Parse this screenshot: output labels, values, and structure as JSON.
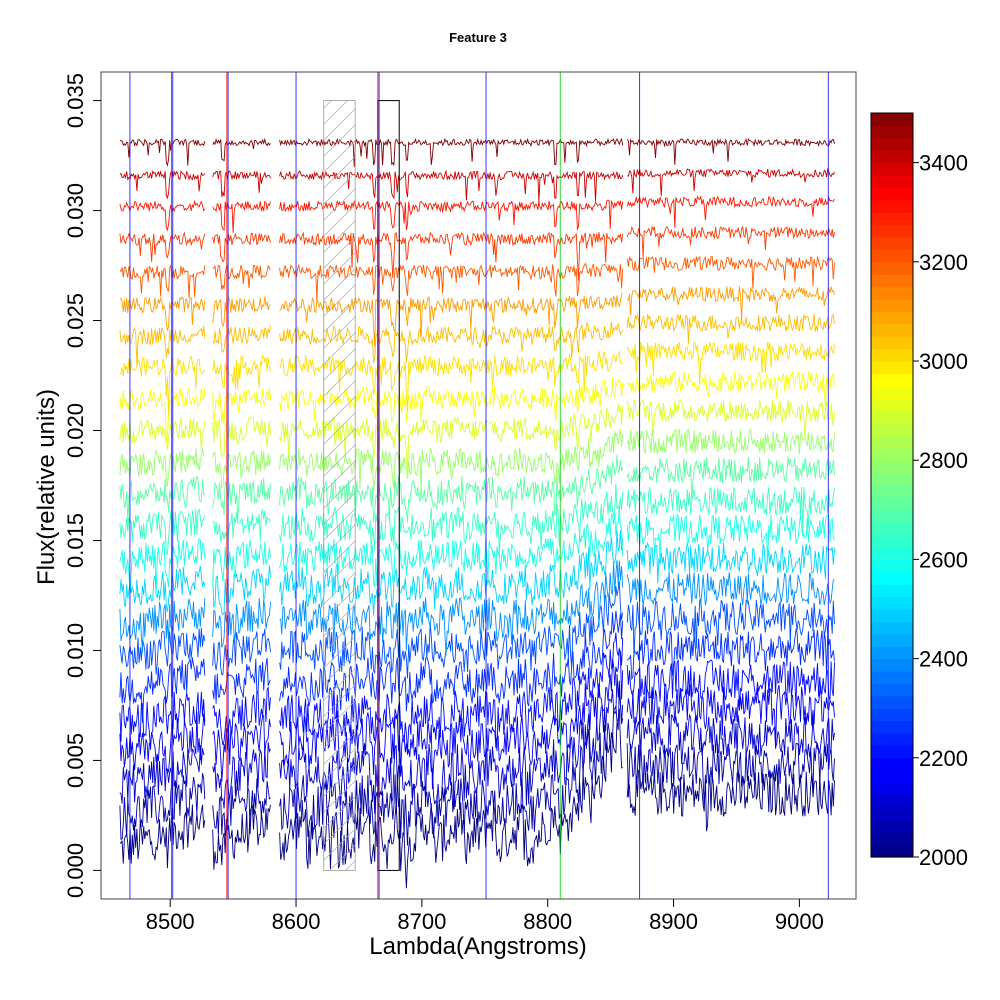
{
  "chart_data": {
    "type": "line",
    "title": "Feature 3",
    "xlabel": "Lambda(Angstroms)",
    "ylabel": "Flux(relative units)",
    "xlim": [
      8445,
      9045
    ],
    "ylim": [
      -0.0013,
      0.0363
    ],
    "x_ticks": [
      "8500",
      "8600",
      "8700",
      "8800",
      "8900",
      "9000"
    ],
    "x_tick_values": [
      8500,
      8600,
      8700,
      8800,
      8900,
      9000
    ],
    "y_ticks": [
      "0.000",
      "0.005",
      "0.010",
      "0.015",
      "0.020",
      "0.025",
      "0.030",
      "0.035"
    ],
    "y_tick_values": [
      0.0,
      0.005,
      0.01,
      0.015,
      0.02,
      0.025,
      0.03,
      0.035
    ],
    "spectra_x_range": [
      8460,
      9028
    ],
    "series_offsets": [
      0.0013,
      0.0027,
      0.0041,
      0.0056,
      0.0069,
      0.0084,
      0.0099,
      0.0113,
      0.0128,
      0.0142,
      0.0156,
      0.0171,
      0.0185,
      0.02,
      0.0214,
      0.0229,
      0.0243,
      0.0257,
      0.0272,
      0.0287,
      0.0302,
      0.0316,
      0.0331
    ],
    "series_temperatures": [
      2000,
      2050,
      2100,
      2150,
      2200,
      2250,
      2300,
      2400,
      2500,
      2600,
      2650,
      2700,
      2800,
      2900,
      2950,
      3000,
      3050,
      3100,
      3200,
      3250,
      3300,
      3400,
      3500
    ],
    "vertical_lines": [
      {
        "x": 8468,
        "color": "#0000ff"
      },
      {
        "x": 8501,
        "color": "#ff0000"
      },
      {
        "x": 8502,
        "color": "#0000ff"
      },
      {
        "x": 8545,
        "color": "#ff0000"
      },
      {
        "x": 8546,
        "color": "#0000ff"
      },
      {
        "x": 8600,
        "color": "#0000ff"
      },
      {
        "x": 8665,
        "color": "#ff0000"
      },
      {
        "x": 8666,
        "color": "#0000ff"
      },
      {
        "x": 8751,
        "color": "#0000ff"
      },
      {
        "x": 8810,
        "color": "#00cc00"
      },
      {
        "x": 8873,
        "color": "#0000ff"
      },
      {
        "x": 9023,
        "color": "#0000ff"
      }
    ],
    "shaded_band": {
      "x": [
        8622,
        8647
      ],
      "y": [
        0.0,
        0.035
      ]
    },
    "outlined_band": {
      "x": [
        8665,
        8682
      ],
      "y": [
        0.0,
        0.035
      ]
    },
    "colorbar": {
      "min": 2000,
      "max": 3500,
      "ticks": [
        "2000",
        "2200",
        "2400",
        "2600",
        "2800",
        "3000",
        "3200",
        "3400"
      ],
      "tick_values": [
        2000,
        2200,
        2400,
        2600,
        2800,
        3000,
        3200,
        3400
      ]
    },
    "grid": false,
    "legend": "colorbar-right"
  }
}
